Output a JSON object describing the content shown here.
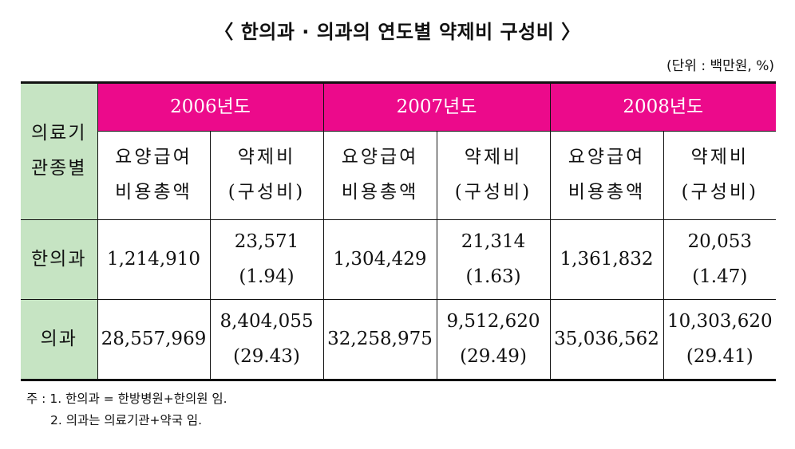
{
  "title": "〈 한의과 · 의과의 연도별 약제비 구성비 〉",
  "unit": "(단위 : 백만원, %)",
  "table": {
    "row_header": [
      "의료기",
      "관종별"
    ],
    "years": [
      "2006년도",
      "2007년도",
      "2008년도"
    ],
    "sub_headers": {
      "total_cost": [
        "요양급여",
        "비용총액"
      ],
      "drug_cost": [
        "약제비",
        "(구성비)"
      ]
    },
    "rows": [
      {
        "label": "한의과",
        "cells": [
          {
            "total": "1,214,910",
            "drug": "23,571",
            "ratio": "(1.94)"
          },
          {
            "total": "1,304,429",
            "drug": "21,314",
            "ratio": "(1.63)"
          },
          {
            "total": "1,361,832",
            "drug": "20,053",
            "ratio": "(1.47)"
          }
        ]
      },
      {
        "label": "의과",
        "cells": [
          {
            "total": "28,557,969",
            "drug": "8,404,055",
            "ratio": "(29.43)"
          },
          {
            "total": "32,258,975",
            "drug": "9,512,620",
            "ratio": "(29.49)"
          },
          {
            "total": "35,036,562",
            "drug": "10,303,620",
            "ratio": "(29.41)"
          }
        ]
      }
    ]
  },
  "footnotes": [
    "주 : 1. 한의과 = 한방병원+한의원 임.",
    "2. 의과는 의료기관+약국 임."
  ],
  "colors": {
    "year_header_bg": "#ec0a8b",
    "row_header_bg": "#c6e4c3"
  }
}
